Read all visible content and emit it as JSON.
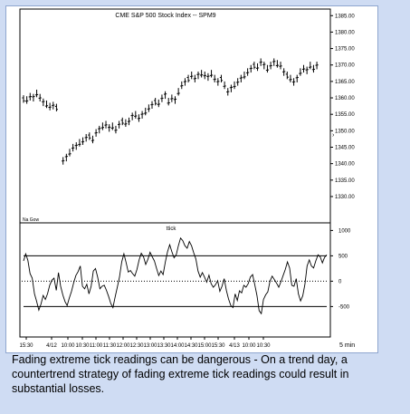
{
  "caption": "Fading extreme tick readings can be dangerous - On a trend day, a countertrend strategy of fading extreme tick readings could result in substantial losses.",
  "colors": {
    "bar": "#000000",
    "line": "#000000",
    "background": "#ffffff",
    "frame": "#cfdcf3",
    "border": "#8fa6cf"
  },
  "chart_data": [
    {
      "type": "ohlc",
      "title": "CME S&P 500 Stock Index -- SPM9",
      "corner_label": "Na Gow",
      "ylim": [
        1322,
        1387
      ],
      "yticks": [
        1330,
        1335,
        1340,
        1345,
        1350,
        1355,
        1360,
        1365,
        1370,
        1375,
        1380,
        1385
      ],
      "ytick_labels": [
        "1330.00",
        "1335.00",
        "1340.00",
        "1345.00",
        "1350.00",
        "1355.00",
        "1360.00",
        "1365.00",
        "1370.00",
        "1375.00",
        "1380.00",
        "1385.00"
      ],
      "segments": [
        {
          "start": 0,
          "highs": [
            1360.8,
            1360.5,
            1361.5,
            1361.2,
            1362.5,
            1361.2,
            1359.8,
            1359.2,
            1358.5,
            1358.8,
            1358.2
          ]
        },
        {
          "start": 12,
          "highs": [
            1342,
            1343,
            1344.5,
            1346,
            1346.5,
            1347.5,
            1348,
            1349,
            1349.5,
            1348.5,
            1350.5,
            1351.5,
            1352.5,
            1353,
            1352,
            1352.5,
            1351.5,
            1353,
            1354,
            1353.5,
            1354,
            1355.5,
            1356,
            1355,
            1356,
            1357,
            1358,
            1359,
            1360,
            1359.5,
            1361,
            1362,
            1360,
            1361,
            1360.5,
            1363,
            1365,
            1366,
            1367,
            1368,
            1367,
            1368,
            1368.5,
            1368,
            1367.5,
            1368.5,
            1367,
            1366,
            1367,
            1365,
            1363,
            1364,
            1365,
            1366,
            1367,
            1368,
            1369,
            1370,
            1371,
            1370.5,
            1372,
            1371,
            1370,
            1371,
            1372,
            1371.5,
            1371,
            1369,
            1368,
            1367,
            1366,
            1367,
            1369,
            1370,
            1369.5,
            1371,
            1370,
            1371
          ]
        }
      ]
    },
    {
      "type": "line",
      "title": "ttick",
      "ylim": [
        -1100,
        1150
      ],
      "yticks": [
        -500,
        0,
        500,
        1000
      ],
      "ytick_labels": [
        "-500",
        "0",
        "500",
        "1000"
      ],
      "threshold_lines": [
        500,
        -500
      ],
      "dotted_lines": [
        0
      ],
      "values": [
        400,
        540,
        410,
        150,
        60,
        -250,
        -400,
        -570,
        -450,
        -280,
        -360,
        -250,
        -80,
        20,
        60,
        -180,
        170,
        -100,
        -270,
        -400,
        -480,
        -330,
        -200,
        -30,
        110,
        190,
        300,
        -100,
        -150,
        -60,
        -250,
        -100,
        200,
        250,
        80,
        -150,
        -100,
        -80,
        -180,
        -300,
        -440,
        -520,
        -310,
        -120,
        80,
        380,
        540,
        370,
        180,
        210,
        150,
        100,
        230,
        420,
        550,
        480,
        330,
        430,
        570,
        480,
        400,
        250,
        110,
        200,
        130,
        380,
        580,
        720,
        580,
        460,
        520,
        700,
        850,
        800,
        700,
        650,
        780,
        700,
        560,
        440,
        200,
        80,
        170,
        80,
        -20,
        120,
        -50,
        -120,
        -70,
        10,
        -200,
        -100,
        50,
        -180,
        -350,
        -480,
        -520,
        -250,
        -380,
        -190,
        -230,
        -80,
        -120,
        -50,
        80,
        130,
        -70,
        -280,
        -580,
        -640,
        -360,
        -270,
        -210,
        0,
        100,
        30,
        -40,
        -120,
        -10,
        110,
        230,
        380,
        260,
        -80,
        -100,
        50,
        -250,
        -390,
        -290,
        -60,
        300,
        420,
        300,
        260,
        400,
        520,
        480,
        360,
        470,
        520
      ]
    }
  ],
  "x_axis": {
    "labels": [
      "15:30",
      "4/12",
      "10:00",
      "10:30",
      "11:00",
      "11:30",
      "12:00",
      "12:30",
      "13:00",
      "13:30",
      "14:00",
      "14:30",
      "15:00",
      "15:30",
      "4/13",
      "10:00",
      "10:30"
    ],
    "interval_label": "5 min"
  }
}
